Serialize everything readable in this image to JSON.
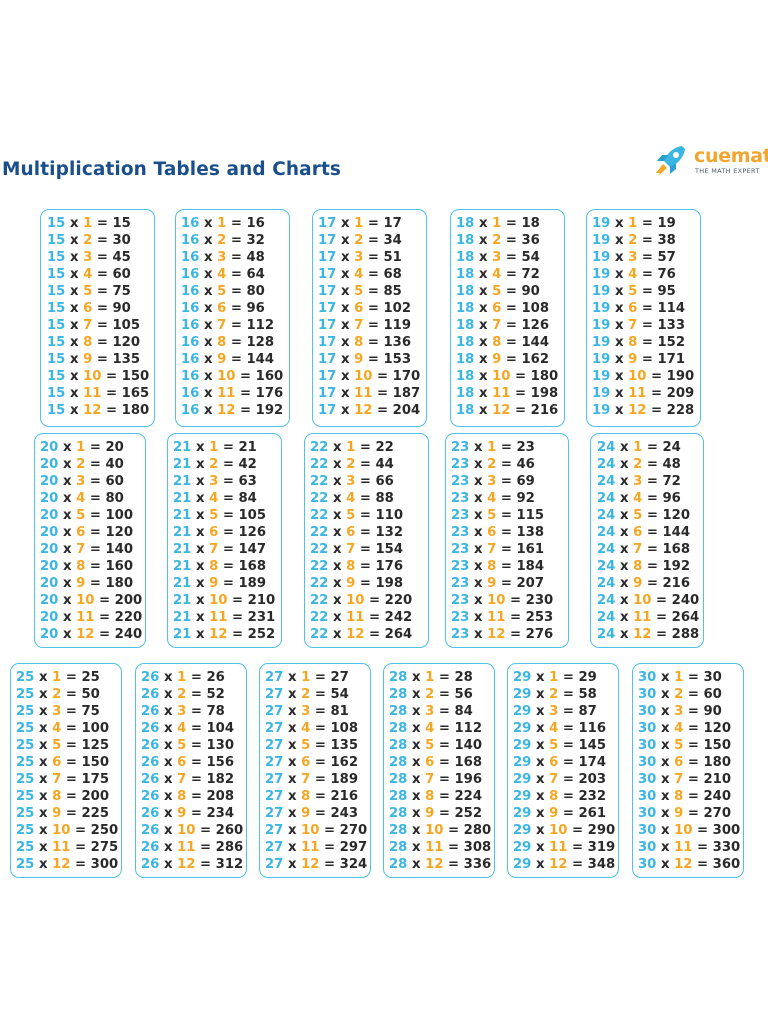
{
  "title": "Multiplication Tables and Charts",
  "logo": {
    "brand": "cuemath",
    "tagline": "THE MATH EXPERT",
    "icon": "rocket-icon"
  },
  "colors": {
    "base": "#3bb6e3",
    "multiplier": "#f5a623",
    "text": "#2a2a2a",
    "border": "#4fc2e8",
    "title": "#1a4f8b"
  },
  "times_sign": "x",
  "equals_sign": "=",
  "tables": [
    {
      "base": "15",
      "rows": [
        {
          "m": "1",
          "p": "15"
        },
        {
          "m": "2",
          "p": "30"
        },
        {
          "m": "3",
          "p": "45"
        },
        {
          "m": "4",
          "p": "60"
        },
        {
          "m": "5",
          "p": "75"
        },
        {
          "m": "6",
          "p": "90"
        },
        {
          "m": "7",
          "p": "105"
        },
        {
          "m": "8",
          "p": "120"
        },
        {
          "m": "9",
          "p": "135"
        },
        {
          "m": "10",
          "p": "150"
        },
        {
          "m": "11",
          "p": "165"
        },
        {
          "m": "12",
          "p": "180"
        }
      ]
    },
    {
      "base": "16",
      "rows": [
        {
          "m": "1",
          "p": "16"
        },
        {
          "m": "2",
          "p": "32"
        },
        {
          "m": "3",
          "p": "48"
        },
        {
          "m": "4",
          "p": "64"
        },
        {
          "m": "5",
          "p": "80"
        },
        {
          "m": "6",
          "p": "96"
        },
        {
          "m": "7",
          "p": "112"
        },
        {
          "m": "8",
          "p": "128"
        },
        {
          "m": "9",
          "p": "144"
        },
        {
          "m": "10",
          "p": "160"
        },
        {
          "m": "11",
          "p": "176"
        },
        {
          "m": "12",
          "p": "192"
        }
      ]
    },
    {
      "base": "17",
      "rows": [
        {
          "m": "1",
          "p": "17"
        },
        {
          "m": "2",
          "p": "34"
        },
        {
          "m": "3",
          "p": "51"
        },
        {
          "m": "4",
          "p": "68"
        },
        {
          "m": "5",
          "p": "85"
        },
        {
          "m": "6",
          "p": "102"
        },
        {
          "m": "7",
          "p": "119"
        },
        {
          "m": "8",
          "p": "136"
        },
        {
          "m": "9",
          "p": "153"
        },
        {
          "m": "10",
          "p": "170"
        },
        {
          "m": "11",
          "p": "187"
        },
        {
          "m": "12",
          "p": "204"
        }
      ]
    },
    {
      "base": "18",
      "rows": [
        {
          "m": "1",
          "p": "18"
        },
        {
          "m": "2",
          "p": "36"
        },
        {
          "m": "3",
          "p": "54"
        },
        {
          "m": "4",
          "p": "72"
        },
        {
          "m": "5",
          "p": "90"
        },
        {
          "m": "6",
          "p": "108"
        },
        {
          "m": "7",
          "p": "126"
        },
        {
          "m": "8",
          "p": "144"
        },
        {
          "m": "9",
          "p": "162"
        },
        {
          "m": "10",
          "p": "180"
        },
        {
          "m": "11",
          "p": "198"
        },
        {
          "m": "12",
          "p": "216"
        }
      ]
    },
    {
      "base": "19",
      "rows": [
        {
          "m": "1",
          "p": "19"
        },
        {
          "m": "2",
          "p": "38"
        },
        {
          "m": "3",
          "p": "57"
        },
        {
          "m": "4",
          "p": "76"
        },
        {
          "m": "5",
          "p": "95"
        },
        {
          "m": "6",
          "p": "114"
        },
        {
          "m": "7",
          "p": "133"
        },
        {
          "m": "8",
          "p": "152"
        },
        {
          "m": "9",
          "p": "171"
        },
        {
          "m": "10",
          "p": "190"
        },
        {
          "m": "11",
          "p": "209"
        },
        {
          "m": "12",
          "p": "228"
        }
      ]
    },
    {
      "base": "20",
      "rows": [
        {
          "m": "1",
          "p": "20"
        },
        {
          "m": "2",
          "p": "40"
        },
        {
          "m": "3",
          "p": "60"
        },
        {
          "m": "4",
          "p": "80"
        },
        {
          "m": "5",
          "p": "100"
        },
        {
          "m": "6",
          "p": "120"
        },
        {
          "m": "7",
          "p": "140"
        },
        {
          "m": "8",
          "p": "160"
        },
        {
          "m": "9",
          "p": "180"
        },
        {
          "m": "10",
          "p": "200"
        },
        {
          "m": "11",
          "p": "220"
        },
        {
          "m": "12",
          "p": "240"
        }
      ]
    },
    {
      "base": "21",
      "rows": [
        {
          "m": "1",
          "p": "21"
        },
        {
          "m": "2",
          "p": "42"
        },
        {
          "m": "3",
          "p": "63"
        },
        {
          "m": "4",
          "p": "84"
        },
        {
          "m": "5",
          "p": "105"
        },
        {
          "m": "6",
          "p": "126"
        },
        {
          "m": "7",
          "p": "147"
        },
        {
          "m": "8",
          "p": "168"
        },
        {
          "m": "9",
          "p": "189"
        },
        {
          "m": "10",
          "p": "210"
        },
        {
          "m": "11",
          "p": "231"
        },
        {
          "m": "12",
          "p": "252"
        }
      ]
    },
    {
      "base": "22",
      "rows": [
        {
          "m": "1",
          "p": "22"
        },
        {
          "m": "2",
          "p": "44"
        },
        {
          "m": "3",
          "p": "66"
        },
        {
          "m": "4",
          "p": "88"
        },
        {
          "m": "5",
          "p": "110"
        },
        {
          "m": "6",
          "p": "132"
        },
        {
          "m": "7",
          "p": "154"
        },
        {
          "m": "8",
          "p": "176"
        },
        {
          "m": "9",
          "p": "198"
        },
        {
          "m": "10",
          "p": "220"
        },
        {
          "m": "11",
          "p": "242"
        },
        {
          "m": "12",
          "p": "264"
        }
      ]
    },
    {
      "base": "23",
      "rows": [
        {
          "m": "1",
          "p": "23"
        },
        {
          "m": "2",
          "p": "46"
        },
        {
          "m": "3",
          "p": "69"
        },
        {
          "m": "4",
          "p": "92"
        },
        {
          "m": "5",
          "p": "115"
        },
        {
          "m": "6",
          "p": "138"
        },
        {
          "m": "7",
          "p": "161"
        },
        {
          "m": "8",
          "p": "184"
        },
        {
          "m": "9",
          "p": "207"
        },
        {
          "m": "10",
          "p": "230"
        },
        {
          "m": "11",
          "p": "253"
        },
        {
          "m": "12",
          "p": "276"
        }
      ]
    },
    {
      "base": "24",
      "rows": [
        {
          "m": "1",
          "p": "24"
        },
        {
          "m": "2",
          "p": "48"
        },
        {
          "m": "3",
          "p": "72"
        },
        {
          "m": "4",
          "p": "96"
        },
        {
          "m": "5",
          "p": "120"
        },
        {
          "m": "6",
          "p": "144"
        },
        {
          "m": "7",
          "p": "168"
        },
        {
          "m": "8",
          "p": "192"
        },
        {
          "m": "9",
          "p": "216"
        },
        {
          "m": "10",
          "p": "240"
        },
        {
          "m": "11",
          "p": "264"
        },
        {
          "m": "12",
          "p": "288"
        }
      ]
    },
    {
      "base": "25",
      "rows": [
        {
          "m": "1",
          "p": "25"
        },
        {
          "m": "2",
          "p": "50"
        },
        {
          "m": "3",
          "p": "75"
        },
        {
          "m": "4",
          "p": "100"
        },
        {
          "m": "5",
          "p": "125"
        },
        {
          "m": "6",
          "p": "150"
        },
        {
          "m": "7",
          "p": "175"
        },
        {
          "m": "8",
          "p": "200"
        },
        {
          "m": "9",
          "p": "225"
        },
        {
          "m": "10",
          "p": "250"
        },
        {
          "m": "11",
          "p": "275"
        },
        {
          "m": "12",
          "p": "300"
        }
      ]
    },
    {
      "base": "26",
      "rows": [
        {
          "m": "1",
          "p": "26"
        },
        {
          "m": "2",
          "p": "52"
        },
        {
          "m": "3",
          "p": "78"
        },
        {
          "m": "4",
          "p": "104"
        },
        {
          "m": "5",
          "p": "130"
        },
        {
          "m": "6",
          "p": "156"
        },
        {
          "m": "7",
          "p": "182"
        },
        {
          "m": "8",
          "p": "208"
        },
        {
          "m": "9",
          "p": "234"
        },
        {
          "m": "10",
          "p": "260"
        },
        {
          "m": "11",
          "p": "286"
        },
        {
          "m": "12",
          "p": "312"
        }
      ]
    },
    {
      "base": "27",
      "rows": [
        {
          "m": "1",
          "p": "27"
        },
        {
          "m": "2",
          "p": "54"
        },
        {
          "m": "3",
          "p": "81"
        },
        {
          "m": "4",
          "p": "108"
        },
        {
          "m": "5",
          "p": "135"
        },
        {
          "m": "6",
          "p": "162"
        },
        {
          "m": "7",
          "p": "189"
        },
        {
          "m": "8",
          "p": "216"
        },
        {
          "m": "9",
          "p": "243"
        },
        {
          "m": "10",
          "p": "270"
        },
        {
          "m": "11",
          "p": "297"
        },
        {
          "m": "12",
          "p": "324"
        }
      ]
    },
    {
      "base": "28",
      "rows": [
        {
          "m": "1",
          "p": "28"
        },
        {
          "m": "2",
          "p": "56"
        },
        {
          "m": "3",
          "p": "84"
        },
        {
          "m": "4",
          "p": "112"
        },
        {
          "m": "5",
          "p": "140"
        },
        {
          "m": "6",
          "p": "168"
        },
        {
          "m": "7",
          "p": "196"
        },
        {
          "m": "8",
          "p": "224"
        },
        {
          "m": "9",
          "p": "252"
        },
        {
          "m": "10",
          "p": "280"
        },
        {
          "m": "11",
          "p": "308"
        },
        {
          "m": "12",
          "p": "336"
        }
      ]
    },
    {
      "base": "29",
      "rows": [
        {
          "m": "1",
          "p": "29"
        },
        {
          "m": "2",
          "p": "58"
        },
        {
          "m": "3",
          "p": "87"
        },
        {
          "m": "4",
          "p": "116"
        },
        {
          "m": "5",
          "p": "145"
        },
        {
          "m": "6",
          "p": "174"
        },
        {
          "m": "7",
          "p": "203"
        },
        {
          "m": "8",
          "p": "232"
        },
        {
          "m": "9",
          "p": "261"
        },
        {
          "m": "10",
          "p": "290"
        },
        {
          "m": "11",
          "p": "319"
        },
        {
          "m": "12",
          "p": "348"
        }
      ]
    },
    {
      "base": "30",
      "rows": [
        {
          "m": "1",
          "p": "30"
        },
        {
          "m": "2",
          "p": "60"
        },
        {
          "m": "3",
          "p": "90"
        },
        {
          "m": "4",
          "p": "120"
        },
        {
          "m": "5",
          "p": "150"
        },
        {
          "m": "6",
          "p": "180"
        },
        {
          "m": "7",
          "p": "210"
        },
        {
          "m": "8",
          "p": "240"
        },
        {
          "m": "9",
          "p": "270"
        },
        {
          "m": "10",
          "p": "300"
        },
        {
          "m": "11",
          "p": "330"
        },
        {
          "m": "12",
          "p": "360"
        }
      ]
    }
  ]
}
